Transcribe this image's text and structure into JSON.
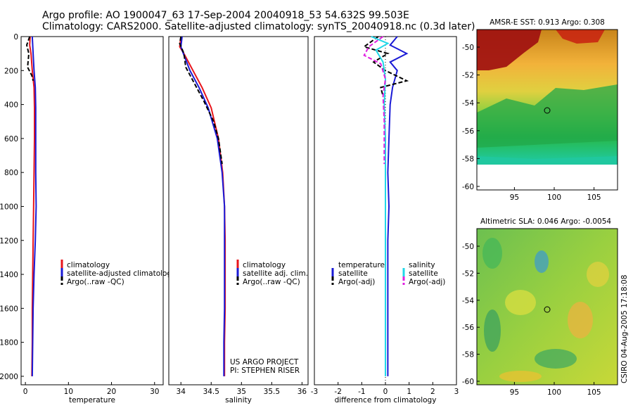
{
  "header": {
    "line1": "Argo profile: AO 1900047_63 17-Sep-2004 20040918_53 54.632S 99.503E",
    "line2": "Climatology: CARS2000. Satellite-adjusted climatology: synTS_20040918.nc (0.3d later)"
  },
  "colors": {
    "climatology": "#e8141b",
    "satellite": "#1a1ad6",
    "argo": "#000000",
    "sal_satellite": "#20d8e8",
    "sal_argo": "#e020e0"
  },
  "chart_data": [
    {
      "type": "line",
      "id": "temperature",
      "xlabel": "temperature",
      "ylabel": "",
      "xlim": [
        -1,
        32
      ],
      "ylim": [
        0,
        2050
      ],
      "y_inverted": true,
      "xticks": [
        0,
        10,
        20,
        30
      ],
      "yticks": [
        0,
        200,
        400,
        600,
        800,
        1000,
        1200,
        1400,
        1600,
        1800,
        2000
      ],
      "legend": [
        "climatology",
        "satellite-adjusted climatology",
        "Argo(..raw -QC)"
      ],
      "series": [
        {
          "name": "climatology",
          "x": [
            1.1,
            1.0,
            1.3,
            1.6,
            2.0,
            2.1,
            2.1,
            2.0,
            1.9,
            1.8,
            1.7,
            1.6,
            1.6,
            1.5
          ],
          "y": [
            0,
            50,
            100,
            200,
            300,
            420,
            600,
            800,
            1000,
            1200,
            1400,
            1600,
            1800,
            2000
          ]
        },
        {
          "name": "satellite",
          "x": [
            1.6,
            1.7,
            1.8,
            2.0,
            2.3,
            2.4,
            2.4,
            2.4,
            2.5,
            2.3,
            2.0,
            1.8,
            1.7,
            1.6
          ],
          "y": [
            0,
            50,
            100,
            200,
            300,
            420,
            600,
            800,
            1000,
            1200,
            1400,
            1600,
            1800,
            2000
          ]
        },
        {
          "name": "argo",
          "x": [
            1.0,
            0.3,
            0.8,
            0.5,
            1.5,
            1.8
          ],
          "y": [
            0,
            50,
            100,
            180,
            230,
            260
          ]
        }
      ]
    },
    {
      "type": "line",
      "id": "salinity",
      "xlabel": "salinity",
      "xlim": [
        33.8,
        36.1
      ],
      "ylim": [
        0,
        2050
      ],
      "y_inverted": true,
      "xticks": [
        34,
        34.5,
        35,
        35.5,
        36
      ],
      "legend": [
        "climatology",
        "satellite adj. clim.",
        "Argo(..raw -QC)"
      ],
      "annotation": [
        "US ARGO PROJECT",
        "PI: STEPHEN RISER"
      ],
      "series": [
        {
          "name": "climatology",
          "x": [
            34.0,
            33.98,
            34.05,
            34.2,
            34.35,
            34.5,
            34.62,
            34.69,
            34.72,
            34.73,
            34.73,
            34.73,
            34.72,
            34.72
          ],
          "y": [
            0,
            60,
            100,
            200,
            300,
            420,
            600,
            800,
            1000,
            1200,
            1400,
            1600,
            1800,
            2000
          ]
        },
        {
          "name": "satellite",
          "x": [
            34.02,
            34.0,
            34.04,
            34.15,
            34.3,
            34.45,
            34.6,
            34.68,
            34.72,
            34.72,
            34.72,
            34.72,
            34.71,
            34.71
          ],
          "y": [
            0,
            60,
            100,
            200,
            300,
            420,
            600,
            800,
            1000,
            1200,
            1400,
            1600,
            1800,
            2000
          ]
        },
        {
          "name": "argo",
          "x": [
            34.0,
            33.98,
            34.05,
            34.08,
            34.2,
            34.38,
            34.54,
            34.62,
            34.68
          ],
          "y": [
            0,
            40,
            100,
            180,
            260,
            380,
            500,
            600,
            750
          ]
        }
      ]
    },
    {
      "type": "line",
      "id": "difference",
      "xlabel": "difference from climatology",
      "xlim": [
        -3,
        3
      ],
      "ylim": [
        0,
        2050
      ],
      "y_inverted": true,
      "xticks": [
        -3,
        -2,
        -1,
        0,
        1,
        2,
        3
      ],
      "legend": [
        "temperature",
        "satellite",
        "Argo(-adj)",
        "salinity",
        "satellite",
        "Argo(-adj)"
      ],
      "series": [
        {
          "name": "temperature satellite",
          "x": [
            0.5,
            0.2,
            0.9,
            0.2,
            0.5,
            0.3,
            0.2,
            0.15,
            0.1,
            0.15,
            0.1,
            0.1,
            0.1,
            0.1
          ],
          "y": [
            0,
            50,
            100,
            150,
            200,
            300,
            400,
            600,
            800,
            1000,
            1200,
            1400,
            1600,
            2000
          ]
        },
        {
          "name": "temperature Argo(-adj)",
          "x": [
            -0.3,
            -0.9,
            0.1,
            -0.5,
            0.0,
            0.9,
            -0.2,
            -0.1
          ],
          "y": [
            0,
            60,
            100,
            150,
            200,
            260,
            300,
            350
          ]
        },
        {
          "name": "salinity satellite",
          "x": [
            -0.6,
            0.1,
            -0.4,
            -0.1,
            0.0,
            -0.05,
            0.0,
            0.0,
            0.0,
            0.0,
            0.0
          ],
          "y": [
            0,
            40,
            80,
            150,
            250,
            400,
            600,
            800,
            1000,
            1500,
            2000
          ]
        },
        {
          "name": "salinity Argo(-adj)",
          "x": [
            -0.1,
            -0.7,
            -0.9,
            -0.2,
            0.0,
            -0.1,
            -0.05,
            -0.05
          ],
          "y": [
            0,
            60,
            110,
            160,
            250,
            350,
            500,
            750
          ]
        }
      ]
    }
  ],
  "maps": [
    {
      "title": "AMSR-E SST: 0.913 Argo: 0.308",
      "xticks": [
        "95",
        "100",
        "105"
      ],
      "yticks": [
        "-50",
        "-52",
        "-54",
        "-56",
        "-58",
        "-60"
      ]
    },
    {
      "title": "Altimetric SLA: 0.046 Argo: -0.0054",
      "xticks": [
        "95",
        "100",
        "105"
      ],
      "yticks": [
        "-50",
        "-52",
        "-54",
        "-56",
        "-58",
        "-60"
      ]
    }
  ],
  "footer": {
    "stamp": "CSIRO 04-Aug-2005 17:18:08"
  }
}
